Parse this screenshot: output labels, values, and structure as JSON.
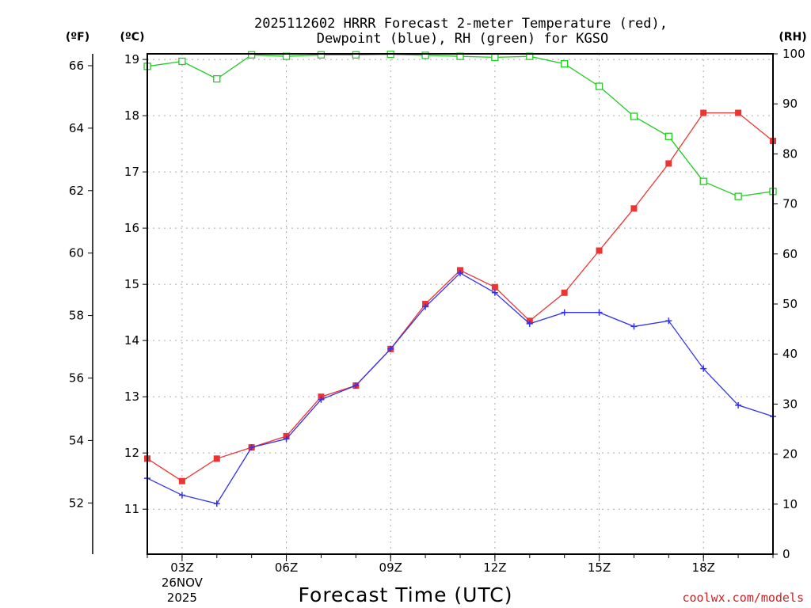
{
  "chart_data": {
    "type": "line",
    "title_line1": "2025112602 HRRR Forecast 2-meter Temperature (red),",
    "title_line2": "Dewpoint (blue), RH (green) for KGSO",
    "xlabel": "Forecast Time (UTC)",
    "credit": "coolwx.com/models",
    "units": {
      "fahrenheit": "(ºF)",
      "celsius": "(ºC)",
      "rh": "(RH)"
    },
    "x_hours": [
      2,
      3,
      4,
      5,
      6,
      7,
      8,
      9,
      10,
      11,
      12,
      13,
      14,
      15,
      16,
      17,
      18,
      19,
      20
    ],
    "x_ticks": [
      {
        "hour": 3,
        "label": "03Z"
      },
      {
        "hour": 6,
        "label": "06Z"
      },
      {
        "hour": 9,
        "label": "09Z"
      },
      {
        "hour": 12,
        "label": "12Z"
      },
      {
        "hour": 15,
        "label": "15Z"
      },
      {
        "hour": 18,
        "label": "18Z"
      }
    ],
    "date_label": {
      "hour": 3,
      "line1": "26NOV",
      "line2": "2025"
    },
    "xlim": [
      2,
      20
    ],
    "celsius_axis": {
      "ylim": [
        10.2,
        19.1
      ],
      "ticks": [
        "11",
        "12",
        "13",
        "14",
        "15",
        "16",
        "17",
        "18",
        "19"
      ]
    },
    "fahrenheit_axis": {
      "ylim": [
        50.36,
        66.38
      ],
      "ticks": [
        "52",
        "54",
        "56",
        "58",
        "60",
        "62",
        "64",
        "66"
      ]
    },
    "rh_axis": {
      "ylim": [
        0,
        100
      ],
      "ticks": [
        "0",
        "10",
        "20",
        "30",
        "40",
        "50",
        "60",
        "70",
        "80",
        "90",
        "100"
      ]
    },
    "series": [
      {
        "name": "Temperature",
        "unit": "C",
        "color": "#ee3333",
        "marker": "filled-square",
        "values": [
          11.9,
          11.5,
          11.9,
          12.1,
          12.3,
          13.0,
          13.2,
          13.85,
          14.65,
          15.25,
          14.95,
          14.35,
          14.85,
          15.6,
          16.35,
          17.15,
          18.05,
          18.05,
          17.55
        ]
      },
      {
        "name": "Dewpoint",
        "unit": "C",
        "color": "#3333ee",
        "marker": "plus",
        "values": [
          11.55,
          11.25,
          11.1,
          12.1,
          12.25,
          12.95,
          13.2,
          13.85,
          14.6,
          15.2,
          14.85,
          14.3,
          14.5,
          14.5,
          14.25,
          14.35,
          13.5,
          12.85,
          12.65
        ]
      },
      {
        "name": "RH",
        "unit": "%",
        "color": "#22cc22",
        "marker": "open-square",
        "values": [
          97.5,
          98.5,
          95,
          99.8,
          99.5,
          99.8,
          99.8,
          99.9,
          99.7,
          99.5,
          99.3,
          99.5,
          98,
          93.5,
          87.5,
          83.5,
          74.5,
          71.5,
          72.5
        ]
      }
    ]
  }
}
